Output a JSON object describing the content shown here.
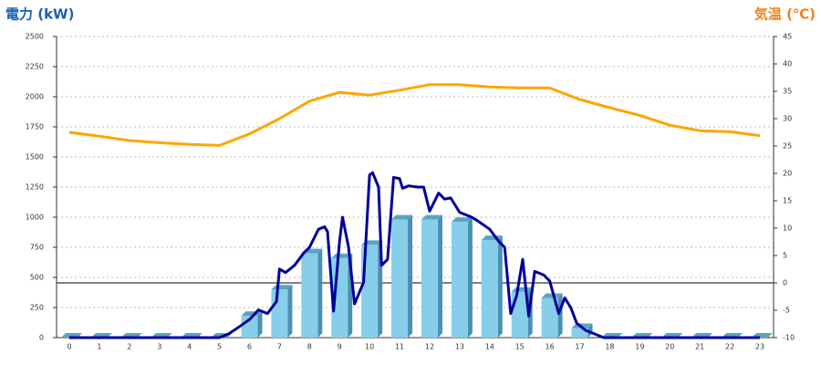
{
  "chart_data": {
    "type": "bar",
    "ylabel": "電力 (kW)",
    "y2label": "気温 (℃)",
    "categories": [
      "0",
      "1",
      "2",
      "3",
      "4",
      "5",
      "6",
      "7",
      "8",
      "9",
      "10",
      "11",
      "12",
      "13",
      "14",
      "15",
      "16",
      "17",
      "18",
      "19",
      "20",
      "21",
      "22",
      "23"
    ],
    "ylim": [
      0,
      2500
    ],
    "yticks": [
      0,
      250,
      500,
      750,
      1000,
      1250,
      1500,
      1750,
      2000,
      2250,
      2500
    ],
    "y2lim": [
      -10,
      45
    ],
    "y2ticks": [
      -10,
      -5,
      0,
      5,
      10,
      15,
      20,
      25,
      30,
      35,
      40,
      45
    ],
    "grid": true,
    "series": [
      {
        "type": "bar",
        "color": "#87ceeb",
        "values": [
          0,
          0,
          0,
          0,
          0,
          0,
          180,
          400,
          700,
          660,
          770,
          980,
          980,
          960,
          810,
          380,
          330,
          80,
          0,
          0,
          0,
          0,
          0,
          0
        ]
      },
      {
        "type": "line",
        "color": "#000099",
        "x": [
          0,
          5,
          5.3,
          5.6,
          6,
          6.3,
          6.6,
          6.9,
          7,
          7.2,
          7.5,
          7.8,
          8,
          8.3,
          8.5,
          8.6,
          8.8,
          9,
          9.1,
          9.3,
          9.5,
          9.8,
          10,
          10.1,
          10.3,
          10.4,
          10.6,
          10.8,
          11,
          11.1,
          11.3,
          11.6,
          11.8,
          12,
          12.2,
          12.3,
          12.5,
          12.7,
          13,
          13.4,
          13.6,
          14,
          14.3,
          14.5,
          14.7,
          14.9,
          15.1,
          15.3,
          15.5,
          15.8,
          16,
          16.3,
          16.5,
          16.7,
          16.9,
          17,
          17.2,
          17.5,
          17.8,
          23
        ],
        "values": [
          0,
          0,
          30,
          80,
          150,
          230,
          200,
          300,
          570,
          540,
          600,
          700,
          750,
          900,
          920,
          880,
          220,
          800,
          1000,
          750,
          280,
          460,
          1350,
          1370,
          1250,
          600,
          650,
          1330,
          1320,
          1240,
          1260,
          1250,
          1250,
          1050,
          1150,
          1200,
          1150,
          1160,
          1040,
          1000,
          970,
          900,
          800,
          750,
          200,
          350,
          650,
          180,
          550,
          520,
          470,
          200,
          330,
          250,
          120,
          100,
          60,
          30,
          0,
          0
        ]
      },
      {
        "type": "line",
        "axis": "y2",
        "color": "#ffa500",
        "values": [
          27.5,
          26.8,
          26,
          25.6,
          25.3,
          25.1,
          27.2,
          30,
          33.2,
          34.8,
          34.3,
          35.2,
          36.2,
          36.2,
          35.8,
          35.6,
          35.6,
          33.5,
          32,
          30.6,
          28.8,
          27.8,
          27.6,
          26.9
        ]
      }
    ]
  }
}
